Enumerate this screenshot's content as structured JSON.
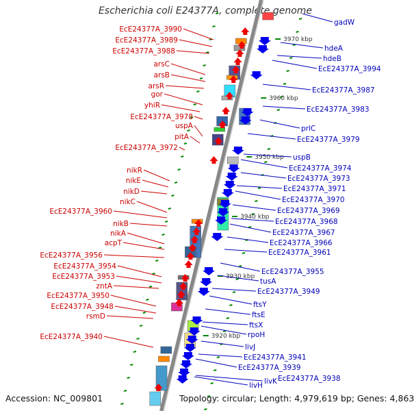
{
  "title": "Escherichia coli E24377A, complete genome",
  "footer": {
    "accession": "Accession: NC_009801",
    "topology": "Topology: circular; Length: 4,979,619 bp; Genes: 4,863"
  },
  "colors": {
    "left_label": "#cc0000",
    "right_label": "#0000bb",
    "forward_gene": "#ee0000",
    "reverse_gene": "#0000ee",
    "backbone": "#888888",
    "tick": "#008800"
  },
  "kbp_labels": [
    "3970 kbp",
    "3960 kbp",
    "3950 kbp",
    "3940 kbp",
    "3930 kbp",
    "3920 kbp"
  ],
  "left_labels": [
    "EcE24377A_3990",
    "EcE24377A_3989",
    "EcE24377A_3988",
    "arsC",
    "arsB",
    "arsR",
    "gor",
    "yhiR",
    "EcE24377A_3978",
    "uspA",
    "pitA",
    "EcE24377A_3972",
    "nikR",
    "nikE",
    "nikD",
    "nikC",
    "EcE24377A_3960",
    "nikB",
    "nikA",
    "acpT",
    "EcE24377A_3956",
    "EcE24377A_3954",
    "EcE24377A_3953",
    "zntA",
    "EcE24377A_3950",
    "EcE24377A_3948",
    "rsmD",
    "EcE24377A_3940"
  ],
  "right_labels": [
    "gadW",
    "hdeA",
    "hdeB",
    "EcE24377A_3994",
    "EcE24377A_3987",
    "EcE24377A_3983",
    "prlC",
    "EcE24377A_3979",
    "uspB",
    "EcE24377A_3974",
    "EcE24377A_3973",
    "EcE24377A_3971",
    "EcE24377A_3970",
    "EcE24377A_3969",
    "EcE24377A_3968",
    "EcE24377A_3967",
    "EcE24377A_3966",
    "EcE24377A_3961",
    "EcE24377A_3955",
    "tusA",
    "EcE24377A_3949",
    "ftsY",
    "ftsE",
    "ftsX",
    "rpoH",
    "livJ",
    "EcE24377A_3941",
    "EcE24377A_3939",
    "livK",
    "EcE24377A_3938",
    "livH"
  ]
}
